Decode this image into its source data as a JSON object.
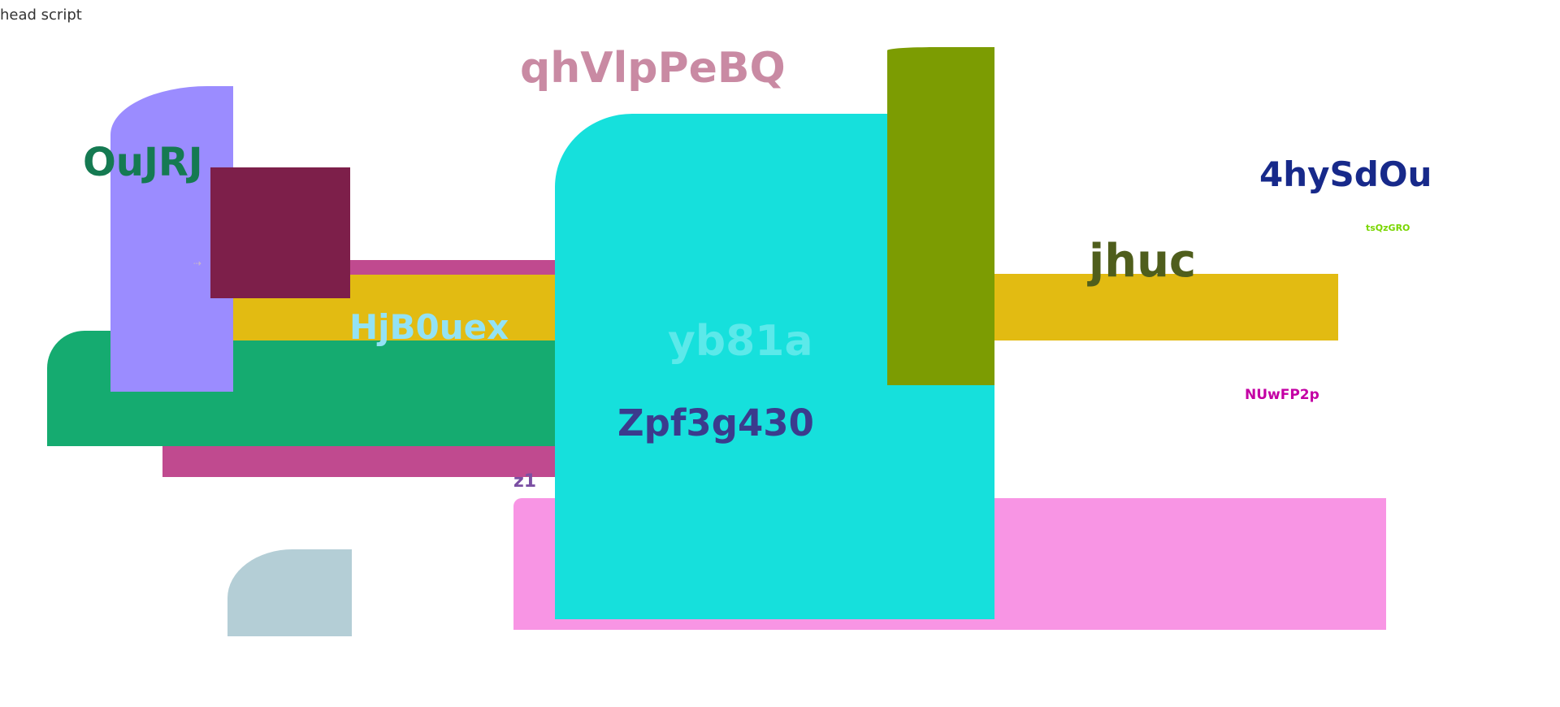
{
  "top_left_text": "head script",
  "labels": {
    "pink_title": "qhVlpPeBQ",
    "green_title": "OuJRJ",
    "yellow_band_text": "HjB0uex",
    "cyan_inner_text": "yb81a",
    "purple_main_text": "Zpf3g430",
    "small_purple_text": "z1",
    "navy_title": "4hySdOu",
    "small_green_text": "tsQzGRO",
    "olive_title": "jhuc",
    "magenta_small_text": "NUwFP2p"
  },
  "colors": {
    "lavender": "#9b8cff",
    "wine": "#7d1f4a",
    "magenta_band": "#c04a8f",
    "yellow_band": "#e2bb12",
    "green_block": "#15ab70",
    "cyan_block": "#16e0dc",
    "olive_block": "#7c9c02",
    "pink_block": "#f895e4",
    "blue_grey_block": "#b4ced6"
  }
}
